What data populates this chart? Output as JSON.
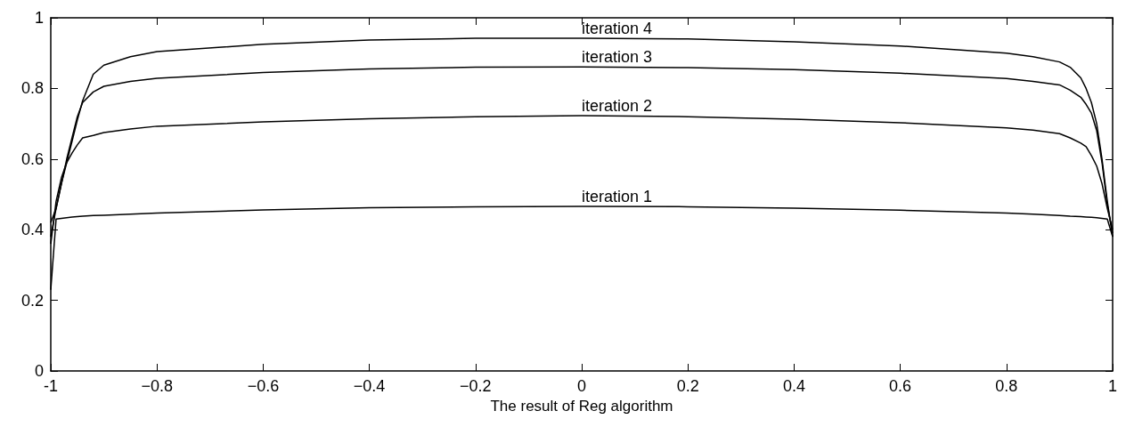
{
  "chart_data": {
    "type": "line",
    "xlabel": "The result of Reg algorithm",
    "x": [
      -1,
      -0.99,
      -0.98,
      -0.97,
      -0.96,
      -0.95,
      -0.94,
      -0.92,
      -0.9,
      -0.85,
      -0.8,
      -0.6,
      -0.4,
      -0.2,
      0,
      0.2,
      0.4,
      0.6,
      0.8,
      0.85,
      0.9,
      0.92,
      0.94,
      0.95,
      0.96,
      0.97,
      0.98,
      0.99,
      1
    ],
    "series": [
      {
        "name": "iteration 1",
        "color": "#000000",
        "values": [
          0.23,
          0.43,
          0.432,
          0.434,
          0.436,
          0.437,
          0.438,
          0.44,
          0.441,
          0.444,
          0.447,
          0.456,
          0.462,
          0.465,
          0.466,
          0.465,
          0.461,
          0.455,
          0.447,
          0.444,
          0.44,
          0.438,
          0.437,
          0.436,
          0.435,
          0.434,
          0.432,
          0.43,
          0.38
        ]
      },
      {
        "name": "iteration 2",
        "color": "#000000",
        "values": [
          0.36,
          0.48,
          0.547,
          0.59,
          0.617,
          0.64,
          0.66,
          0.667,
          0.675,
          0.685,
          0.693,
          0.705,
          0.714,
          0.72,
          0.723,
          0.72,
          0.713,
          0.703,
          0.688,
          0.682,
          0.672,
          0.66,
          0.645,
          0.635,
          0.61,
          0.58,
          0.53,
          0.46,
          0.4
        ]
      },
      {
        "name": "iteration 3",
        "color": "#000000",
        "values": [
          0.38,
          0.46,
          0.53,
          0.6,
          0.66,
          0.72,
          0.76,
          0.79,
          0.806,
          0.82,
          0.829,
          0.845,
          0.855,
          0.86,
          0.861,
          0.859,
          0.853,
          0.843,
          0.828,
          0.82,
          0.81,
          0.795,
          0.775,
          0.755,
          0.73,
          0.68,
          0.59,
          0.47,
          0.39
        ]
      },
      {
        "name": "iteration 4",
        "color": "#000000",
        "values": [
          0.42,
          0.46,
          0.53,
          0.59,
          0.65,
          0.71,
          0.765,
          0.84,
          0.866,
          0.89,
          0.904,
          0.925,
          0.937,
          0.942,
          0.942,
          0.94,
          0.932,
          0.92,
          0.9,
          0.89,
          0.875,
          0.86,
          0.83,
          0.8,
          0.76,
          0.7,
          0.6,
          0.48,
          0.38
        ]
      }
    ],
    "xlim": [
      -1,
      1
    ],
    "xticks": [
      -1,
      {
        "value": -0.8,
        "label": "−0.8"
      },
      {
        "value": -0.6,
        "label": "−0.6"
      },
      {
        "value": -0.4,
        "label": "−0.4"
      },
      {
        "value": -0.2,
        "label": "−0.2"
      },
      0,
      0.2,
      0.4,
      0.6,
      0.8,
      1
    ],
    "ylim": [
      0,
      1
    ],
    "yticks": [
      0,
      0.2,
      0.4,
      0.6,
      0.8,
      1
    ],
    "grid": false,
    "marker": "none",
    "line_style": "solid"
  }
}
